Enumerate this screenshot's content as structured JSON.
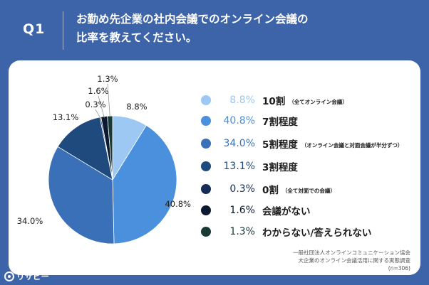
{
  "header": {
    "question_number": "Q1",
    "title_line1": "お勤め先企業の社内会議でのオンライン会議の",
    "title_line2": "比率を教えてください。"
  },
  "chart_data": {
    "type": "pie",
    "title": "お勤め先企業の社内会議でのオンライン会議の比率を教えてください。",
    "slices": [
      {
        "label": "10割",
        "note": "（全てオンライン会議）",
        "value": 8.8,
        "pct_label": "8.8%",
        "color": "#9cc8f3"
      },
      {
        "label": "7割程度",
        "note": "",
        "value": 40.8,
        "pct_label": "40.8%",
        "color": "#4a90dd"
      },
      {
        "label": "5割程度",
        "note": "（オンライン会議と対面会議が半分ずつ）",
        "value": 34.0,
        "pct_label": "34.0%",
        "color": "#3970b8"
      },
      {
        "label": "3割程度",
        "note": "",
        "value": 13.1,
        "pct_label": "13.1%",
        "color": "#1f4a7e"
      },
      {
        "label": "0割",
        "note": "（全て対面での会議）",
        "value": 0.3,
        "pct_label": "0.3%",
        "color": "#172d55"
      },
      {
        "label": "会議がない",
        "note": "",
        "value": 1.6,
        "pct_label": "1.6%",
        "color": "#0b1a30"
      },
      {
        "label": "わからない/答えられない",
        "note": "",
        "value": 1.3,
        "pct_label": "1.3%",
        "color": "#183a36"
      }
    ],
    "start": "top",
    "direction": "clockwise",
    "legend_position": "right"
  },
  "source": {
    "line1": "一般社団法人オンラインコミュニケーション協会",
    "line2": "大企業のオンライン会議活用に関する実態調査",
    "line3": "(n=306)"
  },
  "logo": {
    "text": "リサピー"
  }
}
